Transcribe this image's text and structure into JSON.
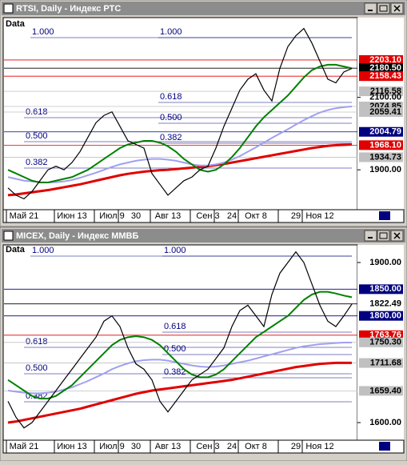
{
  "chart_data": [
    {
      "type": "line",
      "title": "RTSI, Daily - Индекс РТС",
      "data_label": "Data",
      "categories": [
        null,
        null,
        "Май 21",
        null,
        null,
        null,
        null,
        null,
        "Июн 13",
        null,
        null,
        null,
        null,
        "Июл 9",
        null,
        null,
        "30",
        null,
        null,
        null,
        "Авг 13",
        null,
        null,
        null,
        null,
        "Сен 3",
        null,
        null,
        "24",
        null,
        null,
        "Окт 8",
        null,
        null,
        null,
        null,
        "29",
        null,
        null,
        "Ноя 12",
        null,
        null,
        null,
        null
      ],
      "series": [
        {
          "color": "#000000",
          "width": 1.2,
          "values": [
            1850,
            1830,
            1820,
            1840,
            1870,
            1900,
            1910,
            1900,
            1920,
            1950,
            1990,
            2030,
            2050,
            2060,
            2020,
            1980,
            1970,
            1960,
            1890,
            1860,
            1830,
            1850,
            1870,
            1880,
            1900,
            1910,
            1960,
            2020,
            2070,
            2120,
            2150,
            2165,
            2120,
            2090,
            2180,
            2240,
            2270,
            2290,
            2250,
            2200,
            2150,
            2140,
            2170,
            2180
          ]
        },
        {
          "color": "#008000",
          "width": 2,
          "values": [
            1900,
            1890,
            1880,
            1870,
            1865,
            1865,
            1870,
            1875,
            1880,
            1890,
            1900,
            1915,
            1930,
            1945,
            1960,
            1970,
            1975,
            1980,
            1980,
            1975,
            1965,
            1950,
            1930,
            1915,
            1900,
            1895,
            1900,
            1915,
            1935,
            1960,
            1990,
            2020,
            2045,
            2065,
            2085,
            2105,
            2130,
            2155,
            2175,
            2185,
            2190,
            2190,
            2185,
            2180
          ]
        },
        {
          "color": "#a0a0f0",
          "width": 2,
          "values": [
            1880,
            1875,
            1870,
            1868,
            1866,
            1865,
            1866,
            1868,
            1872,
            1878,
            1885,
            1892,
            1900,
            1908,
            1915,
            1920,
            1925,
            1928,
            1930,
            1930,
            1928,
            1925,
            1920,
            1915,
            1912,
            1912,
            1915,
            1920,
            1928,
            1938,
            1950,
            1962,
            1975,
            1988,
            2000,
            2012,
            2025,
            2037,
            2048,
            2058,
            2065,
            2070,
            2073,
            2075
          ]
        },
        {
          "color": "#e00000",
          "width": 3,
          "values": [
            1830,
            1832,
            1835,
            1838,
            1841,
            1844,
            1848,
            1852,
            1856,
            1860,
            1865,
            1870,
            1875,
            1880,
            1885,
            1889,
            1892,
            1895,
            1897,
            1899,
            1900,
            1902,
            1904,
            1906,
            1908,
            1910,
            1913,
            1916,
            1920,
            1924,
            1928,
            1932,
            1936,
            1940,
            1944,
            1948,
            1952,
            1956,
            1960,
            1963,
            1966,
            1968,
            1969,
            1970
          ]
        }
      ],
      "ylim": [
        1790,
        2320
      ],
      "yticks": [
        {
          "value": 1900,
          "label": "1900.00"
        },
        {
          "value": 2100,
          "label": "2100.00"
        }
      ],
      "levels": [
        {
          "value": 2203.1,
          "label": "2203.10",
          "color": "#e00000"
        },
        {
          "value": 2180.5,
          "label": "2180.50",
          "color": "#000000"
        },
        {
          "value": 2158.43,
          "label": "2158.43",
          "color": "#e00000"
        },
        {
          "value": 2116.58,
          "label": "2116.58",
          "color": "#c0c0c0"
        },
        {
          "value": 2074.85,
          "label": "2074.85",
          "color": "#c0c0c0"
        },
        {
          "value": 2059.41,
          "label": "2059.41",
          "color": "#c0c0c0"
        },
        {
          "value": 2004.79,
          "label": "2004.79",
          "color": "#000080"
        },
        {
          "value": 1968.1,
          "label": "1968.10",
          "color": "#e00000"
        },
        {
          "value": 1934.73,
          "label": "1934.73",
          "color": "#c0c0c0"
        }
      ],
      "annotations": [
        "1.000",
        "1.000",
        "0.618",
        "0.618",
        "0.500",
        "0.500",
        "0.382",
        "0.382"
      ]
    },
    {
      "type": "line",
      "title": "MICEX, Daily - Индекс ММВБ",
      "data_label": "Data",
      "categories": [
        null,
        null,
        "Май 21",
        null,
        null,
        null,
        null,
        null,
        "Июн 13",
        null,
        null,
        null,
        null,
        "Июл 9",
        null,
        null,
        "30",
        null,
        null,
        null,
        "Авг 13",
        null,
        null,
        null,
        null,
        "Сен 3",
        null,
        null,
        "24",
        null,
        null,
        "Окт 8",
        null,
        null,
        null,
        null,
        "29",
        null,
        null,
        "Ноя 12",
        null,
        null,
        null,
        null
      ],
      "series": [
        {
          "color": "#000000",
          "width": 1.2,
          "values": [
            1640,
            1610,
            1590,
            1600,
            1620,
            1640,
            1660,
            1680,
            1700,
            1720,
            1740,
            1760,
            1790,
            1800,
            1780,
            1740,
            1710,
            1700,
            1680,
            1640,
            1620,
            1640,
            1660,
            1680,
            1690,
            1700,
            1720,
            1740,
            1780,
            1810,
            1820,
            1800,
            1780,
            1840,
            1880,
            1900,
            1920,
            1900,
            1860,
            1820,
            1790,
            1780,
            1800,
            1822
          ]
        },
        {
          "color": "#008000",
          "width": 2,
          "values": [
            1680,
            1670,
            1660,
            1650,
            1645,
            1645,
            1650,
            1660,
            1670,
            1685,
            1700,
            1715,
            1730,
            1745,
            1755,
            1760,
            1762,
            1760,
            1755,
            1745,
            1730,
            1715,
            1700,
            1690,
            1685,
            1685,
            1690,
            1700,
            1715,
            1730,
            1745,
            1760,
            1770,
            1780,
            1790,
            1800,
            1815,
            1830,
            1840,
            1845,
            1845,
            1842,
            1838,
            1835
          ]
        },
        {
          "color": "#a0a0f0",
          "width": 2,
          "values": [
            1660,
            1658,
            1656,
            1655,
            1655,
            1656,
            1658,
            1662,
            1666,
            1672,
            1678,
            1685,
            1692,
            1700,
            1706,
            1711,
            1715,
            1717,
            1718,
            1718,
            1716,
            1713,
            1710,
            1707,
            1705,
            1704,
            1705,
            1707,
            1710,
            1713,
            1716,
            1720,
            1724,
            1728,
            1732,
            1736,
            1740,
            1743,
            1745,
            1747,
            1748,
            1749,
            1750,
            1750
          ]
        },
        {
          "color": "#e00000",
          "width": 3,
          "values": [
            1600,
            1602,
            1605,
            1608,
            1611,
            1614,
            1617,
            1620,
            1623,
            1626,
            1630,
            1634,
            1638,
            1642,
            1646,
            1650,
            1654,
            1657,
            1660,
            1662,
            1664,
            1666,
            1668,
            1670,
            1672,
            1674,
            1676,
            1678,
            1680,
            1683,
            1686,
            1689,
            1692,
            1695,
            1698,
            1701,
            1704,
            1706,
            1708,
            1710,
            1711,
            1712,
            1712,
            1712
          ]
        }
      ],
      "ylim": [
        1567,
        1933
      ],
      "yticks": [
        {
          "value": 1900,
          "label": "1900.00"
        },
        {
          "value": 1600,
          "label": "1600.00"
        }
      ],
      "levels": [
        {
          "value": 1850,
          "label": "1850.00",
          "color": "#000080"
        },
        {
          "value": 1822.49,
          "label": "1822.49",
          "color": "#ffffff"
        },
        {
          "value": 1800,
          "label": "1800.00",
          "color": "#000080"
        },
        {
          "value": 1763.76,
          "label": "1763.76",
          "color": "#e00000"
        },
        {
          "value": 1750.3,
          "label": "1750.30",
          "color": "#c0c0c0"
        },
        {
          "value": 1711.68,
          "label": "1711.68",
          "color": "#c0c0c0"
        },
        {
          "value": 1659.4,
          "label": "1659.40",
          "color": "#c0c0c0"
        }
      ],
      "annotations": [
        "1.000",
        "1.000",
        "0.618",
        "0.618",
        "0.500",
        "0.500",
        "0.382",
        "0.382"
      ]
    }
  ]
}
